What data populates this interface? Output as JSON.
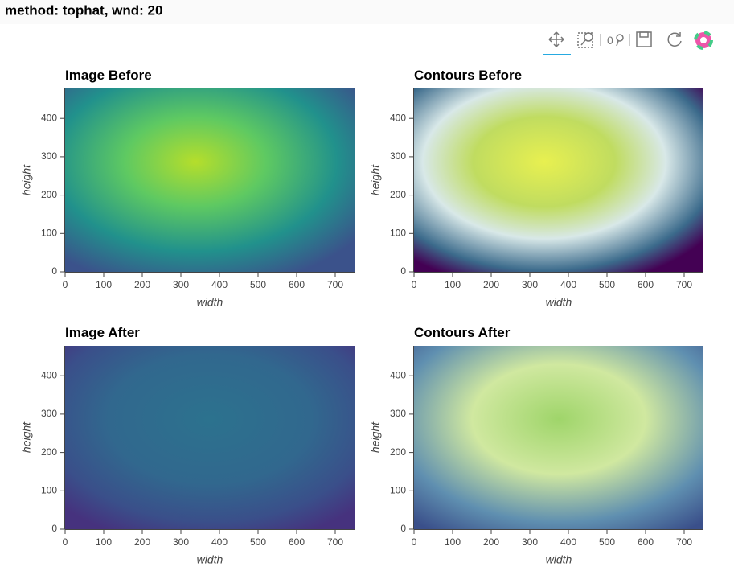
{
  "title": "method: tophat, wnd: 20",
  "chart_data": [
    {
      "type": "image",
      "title": "Image Before",
      "xlabel": "width",
      "ylabel": "height",
      "xlim": [
        0,
        750
      ],
      "ylim": [
        0,
        478
      ],
      "xticks": [
        0,
        100,
        200,
        300,
        400,
        500,
        600,
        700
      ],
      "yticks": [
        0,
        100,
        200,
        300,
        400
      ]
    },
    {
      "type": "image",
      "title": "Contours Before",
      "xlabel": "width",
      "ylabel": "height",
      "xlim": [
        0,
        750
      ],
      "ylim": [
        0,
        478
      ],
      "xticks": [
        0,
        100,
        200,
        300,
        400,
        500,
        600,
        700
      ],
      "yticks": [
        0,
        100,
        200,
        300,
        400
      ]
    },
    {
      "type": "image",
      "title": "Image After",
      "xlabel": "width",
      "ylabel": "height",
      "xlim": [
        0,
        750
      ],
      "ylim": [
        0,
        478
      ],
      "xticks": [
        0,
        100,
        200,
        300,
        400,
        500,
        600,
        700
      ],
      "yticks": [
        0,
        100,
        200,
        300,
        400
      ]
    },
    {
      "type": "image",
      "title": "Contours After",
      "xlabel": "width",
      "ylabel": "height",
      "xlim": [
        0,
        750
      ],
      "ylim": [
        0,
        478
      ],
      "xticks": [
        0,
        100,
        200,
        300,
        400,
        500,
        600,
        700
      ],
      "yticks": [
        0,
        100,
        200,
        300,
        400
      ]
    }
  ]
}
